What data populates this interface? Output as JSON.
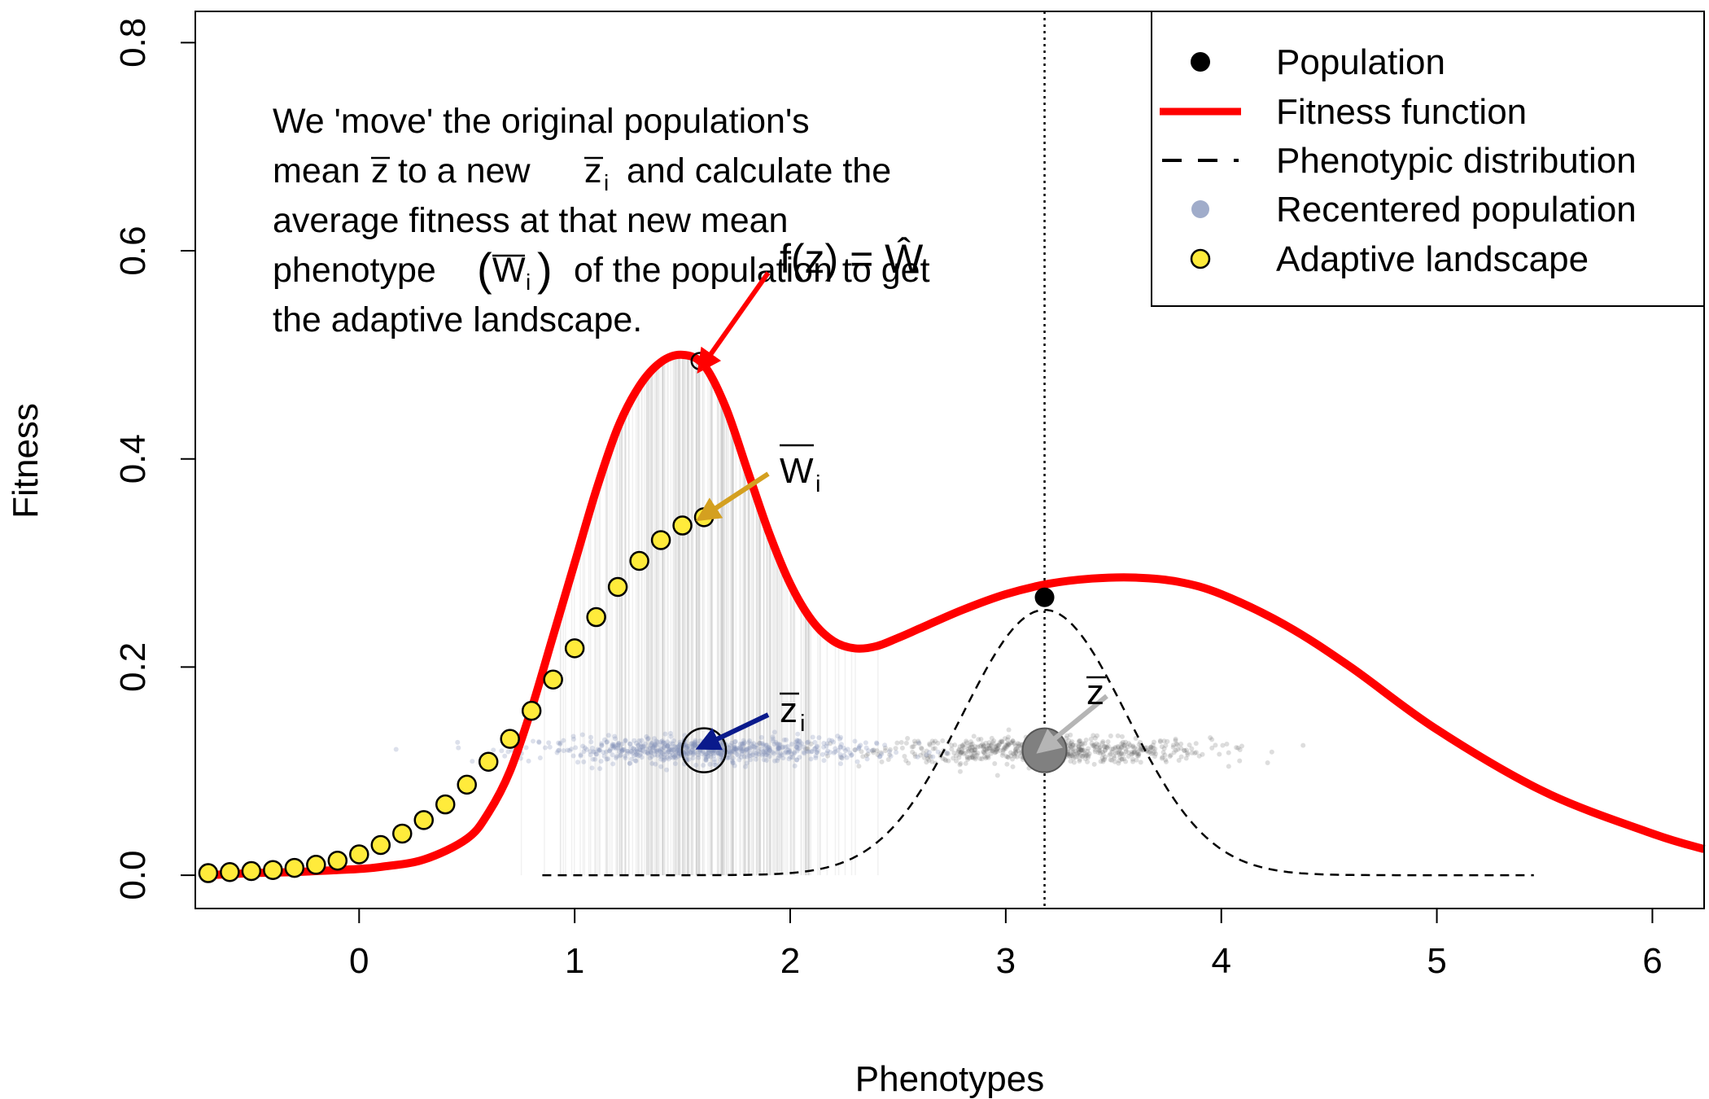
{
  "chart_data": {
    "type": "line",
    "title": "",
    "xlabel": "Phenotypes",
    "ylabel": "Fitness",
    "xlim": [
      -0.76,
      6.24
    ],
    "ylim": [
      -0.032,
      0.83
    ],
    "x_ticks": [
      {
        "value": 0,
        "label": "0"
      },
      {
        "value": 1,
        "label": "1"
      },
      {
        "value": 2,
        "label": "2"
      },
      {
        "value": 3,
        "label": "3"
      },
      {
        "value": 4,
        "label": "4"
      },
      {
        "value": 5,
        "label": "5"
      },
      {
        "value": 6,
        "label": "6"
      }
    ],
    "y_ticks": [
      {
        "value": 0.0,
        "label": "0.0"
      },
      {
        "value": 0.2,
        "label": "0.2"
      },
      {
        "value": 0.4,
        "label": "0.4"
      },
      {
        "value": 0.6,
        "label": "0.6"
      },
      {
        "value": 0.8,
        "label": "0.8"
      }
    ],
    "grid": false,
    "colors": {
      "fitness": "#ff0000",
      "landscape_fill": "#ffeb3b",
      "recentered": "#8090b8",
      "original_cloud": "#666666",
      "arrow_red": "#ff0000",
      "arrow_gold": "#d4a020",
      "arrow_navy": "#0a1a8c",
      "arrow_grey": "#b5b5b5"
    },
    "legend": {
      "position": "top-right",
      "entries": [
        {
          "label": "Population",
          "kind": "point",
          "color": "#000000"
        },
        {
          "label": "Fitness function",
          "kind": "line",
          "color": "#ff0000"
        },
        {
          "label": "Phenotypic distribution",
          "kind": "dashed",
          "color": "#000000"
        },
        {
          "label": "Recentered population",
          "kind": "point",
          "color": "#8090b8"
        },
        {
          "label": "Adaptive landscape",
          "kind": "point",
          "color": "#ffeb3b"
        }
      ]
    },
    "fitness_function": {
      "x": [
        -0.7,
        -0.5,
        -0.3,
        -0.1,
        0.0,
        0.1,
        0.3,
        0.5,
        0.6,
        0.7,
        0.8,
        0.9,
        1.0,
        1.1,
        1.2,
        1.3,
        1.4,
        1.5,
        1.6,
        1.7,
        1.8,
        1.9,
        2.0,
        2.1,
        2.2,
        2.3,
        2.4,
        2.5,
        2.6,
        2.8,
        3.0,
        3.2,
        3.4,
        3.6,
        3.8,
        4.0,
        4.3,
        4.6,
        5.0,
        5.5,
        6.0,
        6.24
      ],
      "y": [
        0.0,
        0.002,
        0.003,
        0.005,
        0.006,
        0.008,
        0.015,
        0.035,
        0.06,
        0.1,
        0.16,
        0.23,
        0.3,
        0.37,
        0.43,
        0.47,
        0.493,
        0.5,
        0.49,
        0.45,
        0.39,
        0.33,
        0.28,
        0.245,
        0.225,
        0.218,
        0.22,
        0.228,
        0.237,
        0.255,
        0.27,
        0.28,
        0.285,
        0.286,
        0.282,
        0.27,
        0.24,
        0.2,
        0.14,
        0.08,
        0.04,
        0.025
      ]
    },
    "adaptive_landscape": {
      "x": [
        -0.7,
        -0.6,
        -0.5,
        -0.4,
        -0.3,
        -0.2,
        -0.1,
        0.0,
        0.1,
        0.2,
        0.3,
        0.4,
        0.5,
        0.6,
        0.7,
        0.8,
        0.9,
        1.0,
        1.1,
        1.2,
        1.3,
        1.4,
        1.5,
        1.6
      ],
      "y": [
        0.002,
        0.003,
        0.004,
        0.005,
        0.007,
        0.01,
        0.014,
        0.02,
        0.029,
        0.04,
        0.053,
        0.068,
        0.087,
        0.109,
        0.131,
        0.158,
        0.188,
        0.218,
        0.248,
        0.277,
        0.302,
        0.322,
        0.336,
        0.344
      ]
    },
    "phenotypic_distribution": {
      "mean": 3.18,
      "sd": 0.38,
      "peak": 0.255,
      "xrange": [
        0.85,
        5.45
      ]
    },
    "population_point": {
      "x": 3.18,
      "y": 0.267
    },
    "population_mean_x": 3.18,
    "recentered_mean": {
      "x": 1.6,
      "y": 0.12
    },
    "original_mean": {
      "x": 3.18,
      "y": 0.12
    },
    "highlight_point": {
      "x": 1.58,
      "y": 0.494
    }
  },
  "annotations": {
    "note_lines": [
      "We 'move' the original population's",
      "mean",
      "to a new",
      "and calculate the",
      "average fitness at that new mean",
      "phenotype",
      "of the population to get",
      "the adaptive landscape."
    ],
    "z_bar": "z",
    "sub_i": "i",
    "w_bar": "W",
    "fz_formula": "f(z) = Ŵ"
  }
}
